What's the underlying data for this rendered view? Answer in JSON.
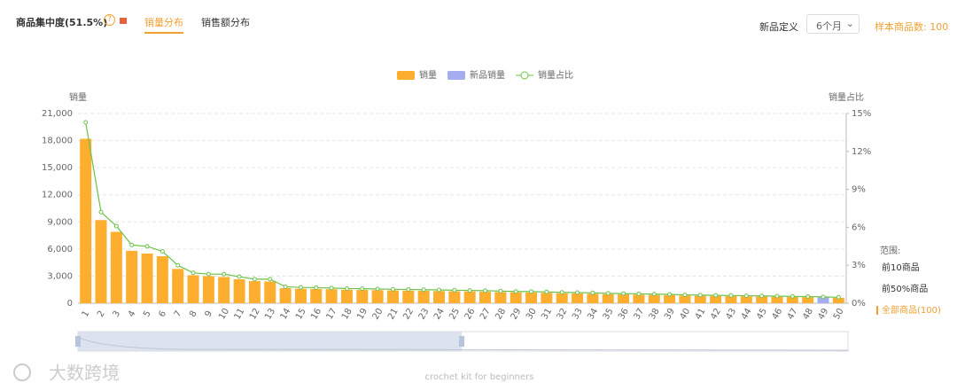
{
  "header": {
    "title": "商品集中度(51.5%)",
    "help": "?",
    "tabs": [
      "销量分布",
      "销售额分布"
    ],
    "active_tab": 0,
    "new_def_label": "新品定义",
    "new_def_value": "6个月",
    "sample_count": "样本商品数: 100"
  },
  "chart_data": {
    "type": "bar",
    "y_label": "销量",
    "y2_label": "销量占比",
    "categories": [
      "1",
      "2",
      "3",
      "4",
      "5",
      "6",
      "7",
      "8",
      "9",
      "10",
      "11",
      "12",
      "13",
      "14",
      "15",
      "16",
      "17",
      "18",
      "19",
      "20",
      "21",
      "22",
      "23",
      "24",
      "25",
      "26",
      "27",
      "28",
      "29",
      "30",
      "31",
      "32",
      "33",
      "34",
      "35",
      "36",
      "37",
      "38",
      "39",
      "40",
      "41",
      "42",
      "43",
      "44",
      "45",
      "46",
      "47",
      "48",
      "49",
      "50"
    ],
    "series": [
      {
        "name": "销量",
        "color": "#fdae2f",
        "values": [
          18200,
          9200,
          7900,
          5800,
          5500,
          5200,
          3800,
          3100,
          3000,
          2900,
          2650,
          2450,
          2400,
          1670,
          1600,
          1580,
          1550,
          1500,
          1480,
          1450,
          1420,
          1400,
          1380,
          1350,
          1320,
          1300,
          1270,
          1240,
          1200,
          1180,
          1150,
          1100,
          1080,
          1050,
          1000,
          980,
          950,
          920,
          900,
          850,
          820,
          800,
          780,
          760,
          740,
          720,
          700,
          680,
          null,
          600
        ]
      },
      {
        "name": "新品销量",
        "color": "#a3adf0",
        "values": [
          null,
          null,
          null,
          null,
          null,
          null,
          null,
          null,
          null,
          null,
          null,
          null,
          null,
          null,
          null,
          null,
          null,
          null,
          null,
          null,
          null,
          null,
          null,
          null,
          null,
          null,
          null,
          null,
          null,
          null,
          null,
          null,
          null,
          null,
          null,
          null,
          null,
          null,
          null,
          null,
          null,
          null,
          null,
          null,
          null,
          null,
          null,
          null,
          650,
          null
        ]
      },
      {
        "name": "销量占比",
        "color": "#6cc24a",
        "axis": "y2",
        "type": "line",
        "values": [
          14.3,
          7.2,
          6.1,
          4.6,
          4.5,
          4.1,
          3.0,
          2.4,
          2.3,
          2.3,
          2.1,
          1.9,
          1.9,
          1.3,
          1.25,
          1.23,
          1.2,
          1.16,
          1.15,
          1.13,
          1.1,
          1.09,
          1.07,
          1.05,
          1.03,
          1.01,
          0.99,
          0.96,
          0.93,
          0.92,
          0.89,
          0.86,
          0.84,
          0.82,
          0.78,
          0.76,
          0.74,
          0.72,
          0.7,
          0.66,
          0.64,
          0.62,
          0.61,
          0.59,
          0.58,
          0.56,
          0.54,
          0.53,
          0.5,
          0.47
        ]
      }
    ],
    "ylim": [
      0,
      21000
    ],
    "yticks": [
      0,
      {
        "value": 3000,
        "label": "3,000"
      },
      {
        "value": 6000,
        "label": "6,000"
      },
      {
        "value": 9000,
        "label": "9,000"
      },
      {
        "value": 12000,
        "label": "12,000"
      },
      {
        "value": 15000,
        "label": "15,000"
      },
      {
        "value": 18000,
        "label": "18,000"
      },
      {
        "value": 21000,
        "label": "21,000"
      }
    ],
    "y2lim": [
      0,
      15
    ],
    "y2ticks": [
      {
        "value": 0,
        "label": "0%"
      },
      {
        "value": 3,
        "label": "3%"
      },
      {
        "value": 6,
        "label": "6%"
      },
      {
        "value": 9,
        "label": "9%"
      },
      {
        "value": 12,
        "label": "12%"
      },
      {
        "value": 15,
        "label": "15%"
      }
    ],
    "grid": true
  },
  "range_panel": {
    "title": "范围:",
    "options": [
      "前10商品",
      "前50%商品",
      "全部商品(100)"
    ],
    "active": 2
  },
  "watermark": {
    "logo": "大数跨境",
    "caption": "crochet kit for beginners"
  }
}
